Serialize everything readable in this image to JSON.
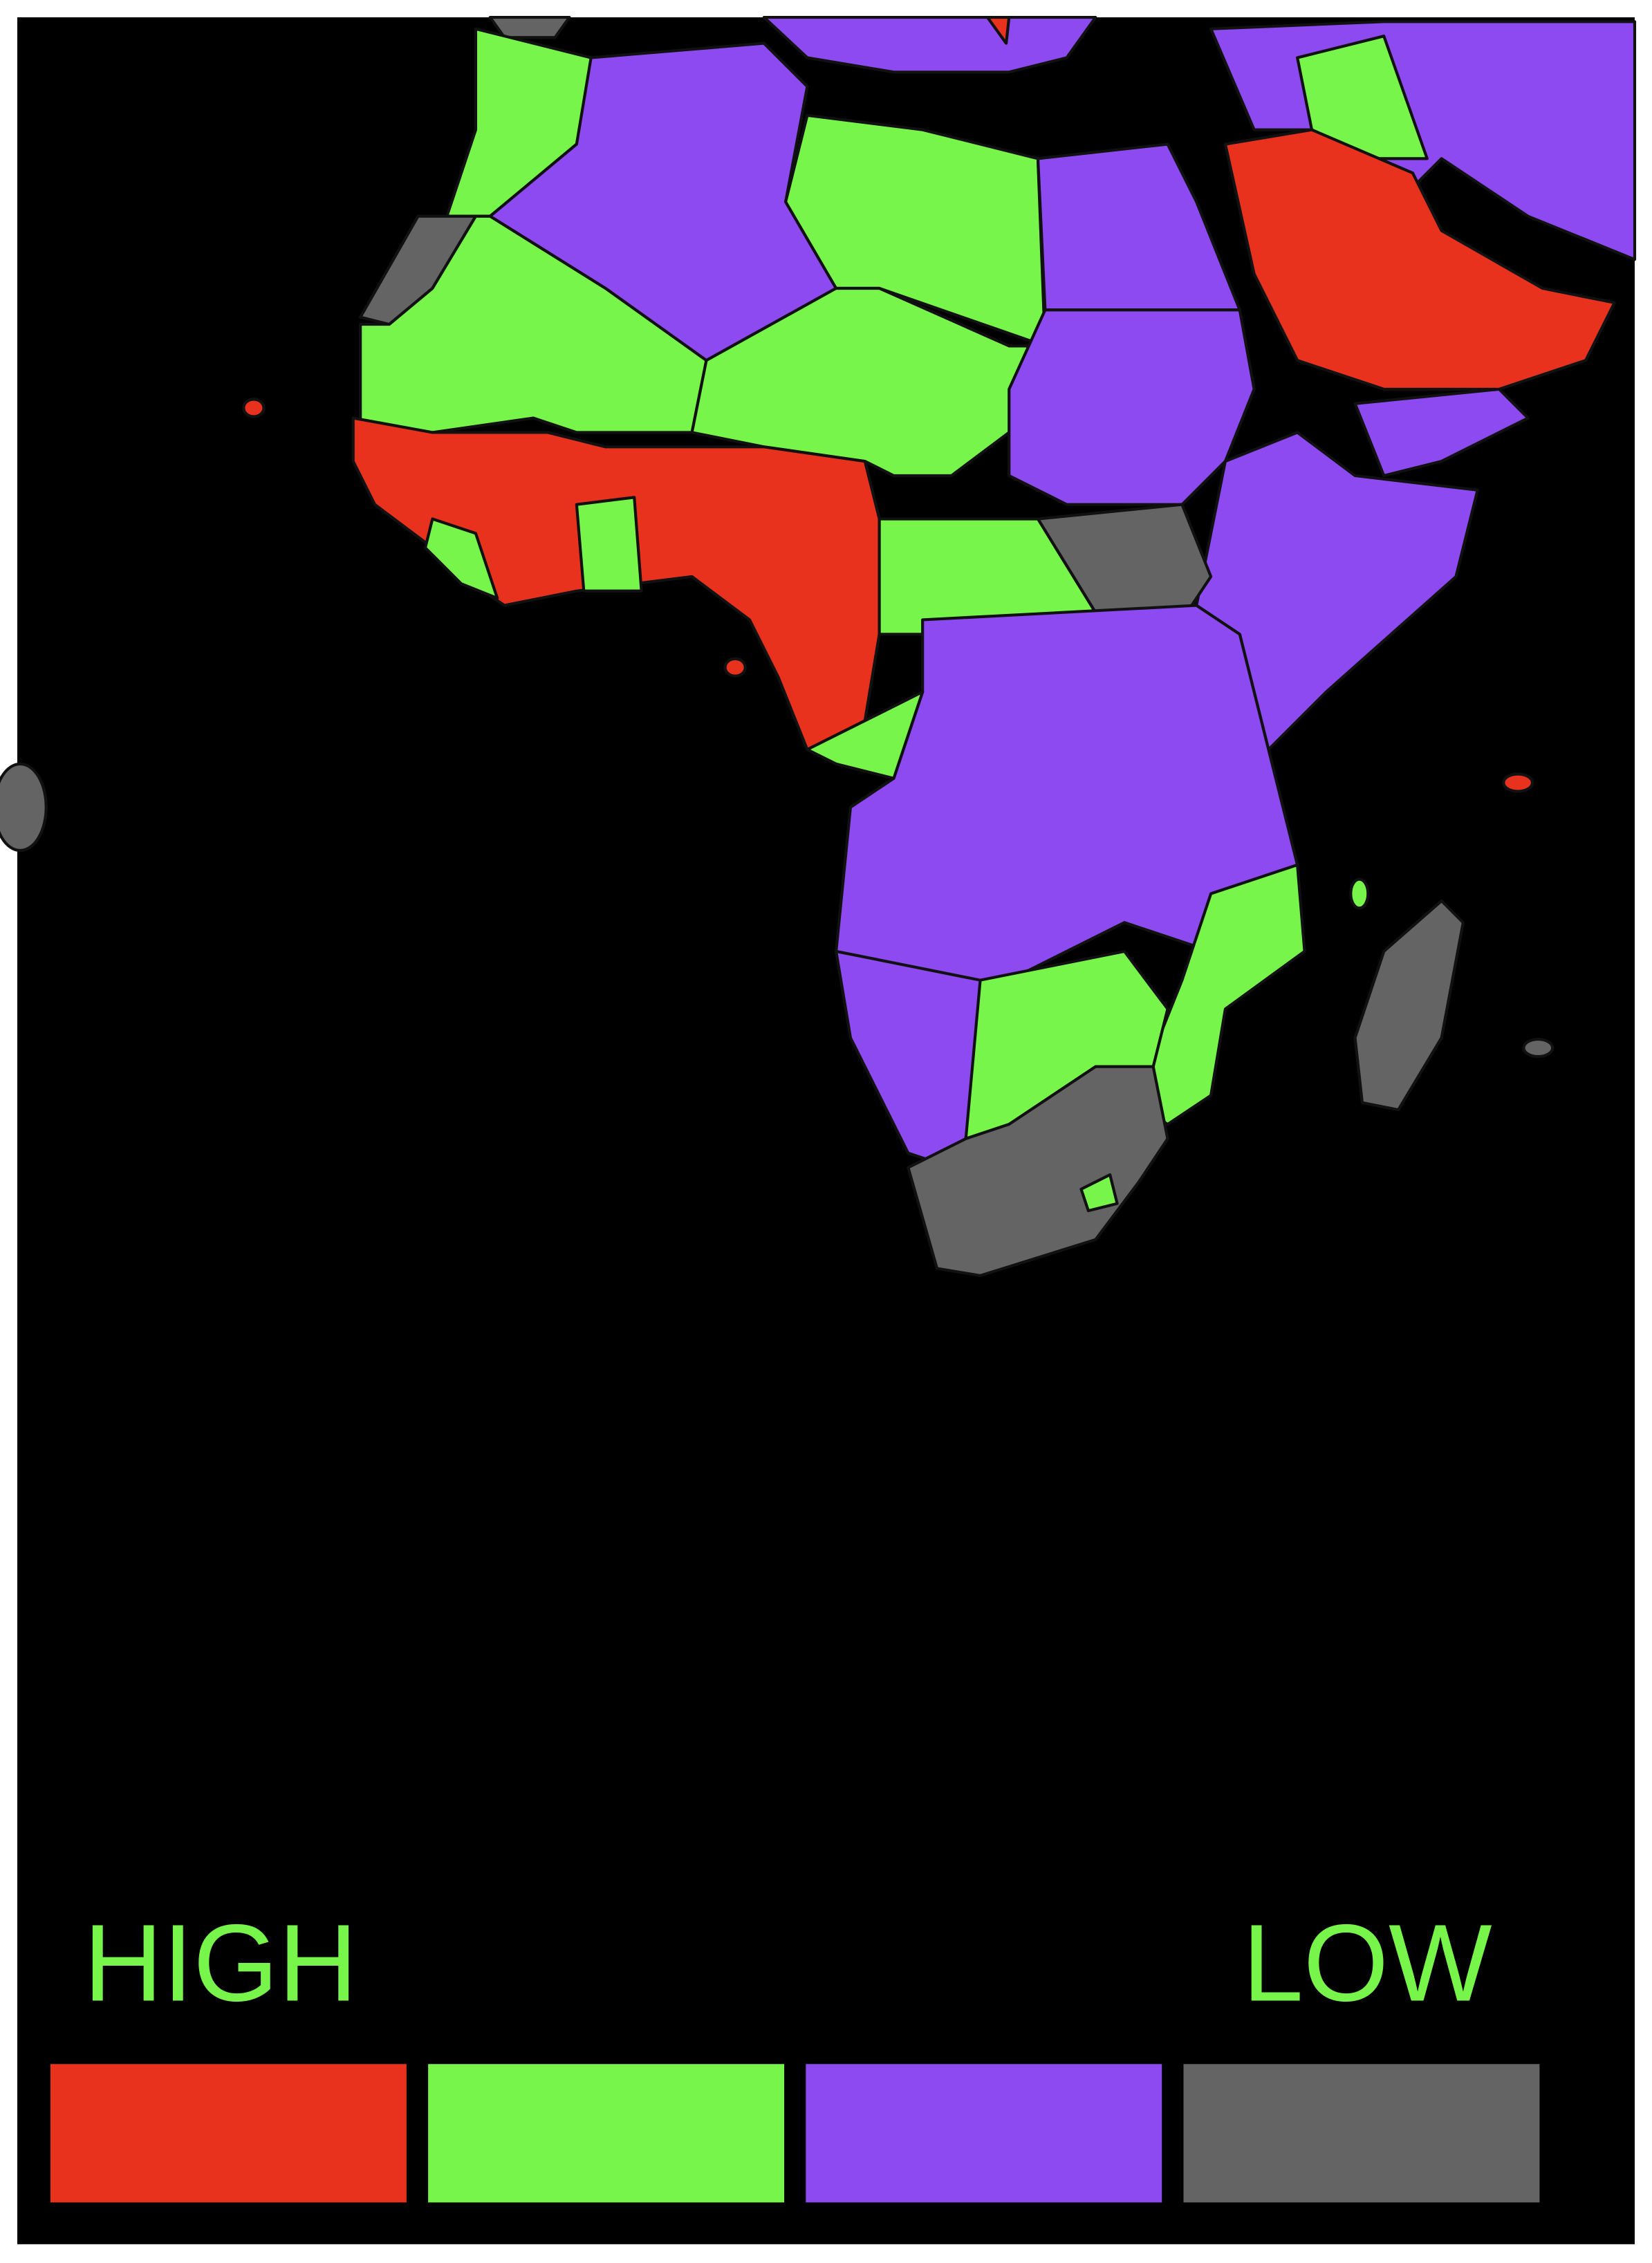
{
  "legend": {
    "high_label": "HIGH",
    "low_label": "LOW",
    "colors": [
      "#e8321e",
      "#78f54a",
      "#8c4af0",
      "#646464"
    ]
  }
}
